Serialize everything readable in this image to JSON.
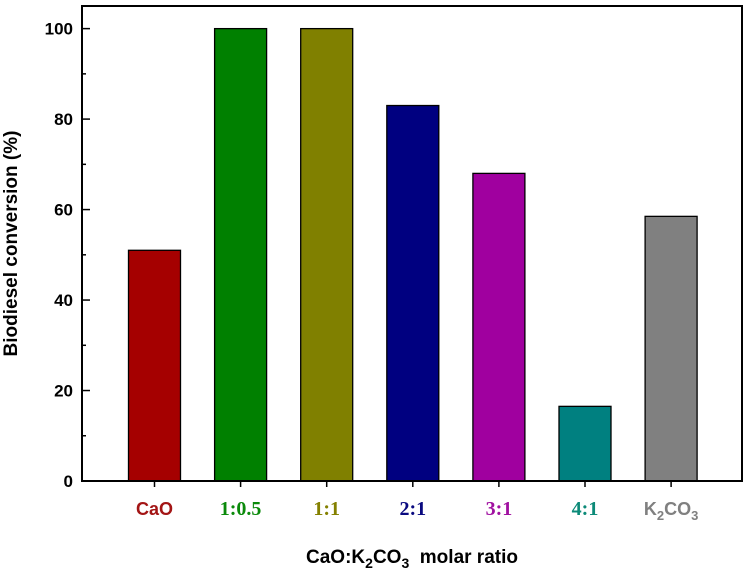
{
  "chart_data": {
    "type": "bar",
    "xlabel": {
      "prefix": "CaO:K",
      "sub1": "2",
      "mid": "CO",
      "sub2": "3",
      "suffix": "  molar ratio"
    },
    "ylabel": "Biodiesel conversion (%)",
    "ylim": [
      0,
      105
    ],
    "yticks": [
      "0",
      "20",
      "40",
      "60",
      "80",
      "100"
    ],
    "grid": false,
    "categories": [
      "CaO",
      "1:0.5",
      "1:1",
      "2:1",
      "3:1",
      "4:1",
      "K2CO3"
    ],
    "category_display": [
      {
        "text": "CaO",
        "color": "#a31515"
      },
      {
        "text": "1:0.5",
        "color": "#0b8a0b"
      },
      {
        "text": "1:1",
        "color": "#848000"
      },
      {
        "text": "2:1",
        "color": "#0a0a80"
      },
      {
        "text": "3:1",
        "color": "#a010a0"
      },
      {
        "text": "4:1",
        "color": "#0c8a78"
      },
      {
        "main": "K",
        "sub1": "2",
        "mid": "CO",
        "sub2": "3",
        "color": "#808080"
      }
    ],
    "values": [
      51,
      100,
      100,
      83,
      68,
      16.5,
      58.5
    ],
    "bar_colors": [
      "#a50000",
      "#008000",
      "#808000",
      "#000080",
      "#a0009f",
      "#008080",
      "#808080"
    ]
  }
}
